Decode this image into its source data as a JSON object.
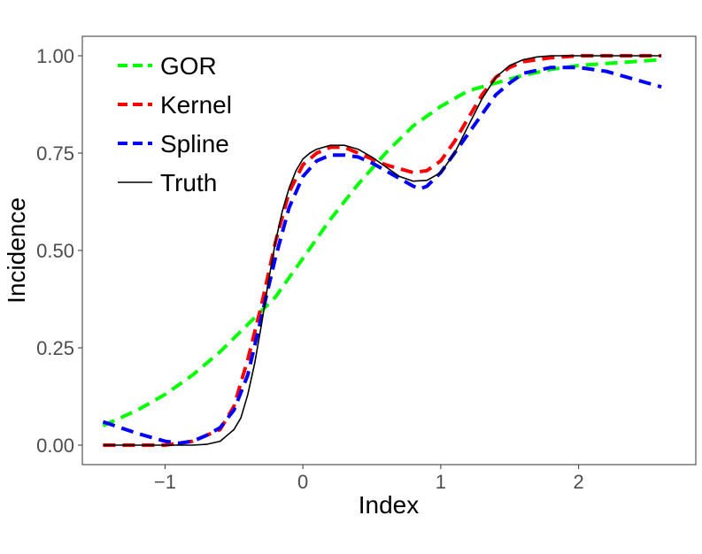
{
  "chart_data": {
    "type": "line",
    "xlabel": "Index",
    "ylabel": "Incidence",
    "xlim": [
      -1.6,
      2.85
    ],
    "ylim": [
      -0.05,
      1.05
    ],
    "xticks": [
      -1,
      0,
      1,
      2
    ],
    "xtick_labels": [
      "−1",
      "0",
      "1",
      "2"
    ],
    "yticks": [
      0,
      0.25,
      0.5,
      0.75,
      1.0
    ],
    "ytick_labels": [
      "0.00",
      "0.25",
      "0.50",
      "0.75",
      "1.00"
    ],
    "grid": false,
    "legend_position": "top-left",
    "series": [
      {
        "name": "GOR",
        "color": "#00ff00",
        "dash": "dashed",
        "x": [
          -1.45,
          -1.2,
          -1.0,
          -0.8,
          -0.6,
          -0.4,
          -0.2,
          0.0,
          0.2,
          0.4,
          0.6,
          0.8,
          1.0,
          1.2,
          1.4,
          1.6,
          1.8,
          2.0,
          2.2,
          2.4,
          2.6
        ],
        "y": [
          0.05,
          0.09,
          0.13,
          0.18,
          0.24,
          0.31,
          0.38,
          0.48,
          0.58,
          0.67,
          0.75,
          0.82,
          0.87,
          0.91,
          0.93,
          0.95,
          0.965,
          0.975,
          0.98,
          0.985,
          0.99
        ]
      },
      {
        "name": "Kernel",
        "color": "#ff0000",
        "dash": "dashed",
        "x": [
          -1.45,
          -1.2,
          -1.0,
          -0.8,
          -0.6,
          -0.5,
          -0.4,
          -0.3,
          -0.2,
          -0.1,
          0.0,
          0.1,
          0.2,
          0.3,
          0.4,
          0.6,
          0.8,
          0.9,
          1.0,
          1.1,
          1.2,
          1.3,
          1.4,
          1.5,
          1.6,
          1.8,
          2.0,
          2.2,
          2.4,
          2.6
        ],
        "y": [
          0.0,
          0.0,
          0.0,
          0.01,
          0.04,
          0.1,
          0.22,
          0.36,
          0.52,
          0.65,
          0.72,
          0.75,
          0.765,
          0.765,
          0.75,
          0.72,
          0.7,
          0.705,
          0.73,
          0.78,
          0.84,
          0.9,
          0.945,
          0.97,
          0.985,
          0.995,
          1.0,
          1.0,
          1.0,
          1.0
        ]
      },
      {
        "name": "Spline",
        "color": "#0000ff",
        "dash": "dashed",
        "x": [
          -1.45,
          -1.2,
          -1.0,
          -0.9,
          -0.8,
          -0.7,
          -0.6,
          -0.5,
          -0.4,
          -0.3,
          -0.2,
          -0.1,
          0.0,
          0.1,
          0.2,
          0.3,
          0.4,
          0.5,
          0.6,
          0.7,
          0.8,
          0.85,
          0.9,
          1.0,
          1.1,
          1.2,
          1.3,
          1.4,
          1.5,
          1.6,
          1.8,
          2.0,
          2.2,
          2.4,
          2.6
        ],
        "y": [
          0.06,
          0.03,
          0.01,
          0.005,
          0.01,
          0.025,
          0.045,
          0.09,
          0.18,
          0.33,
          0.48,
          0.61,
          0.69,
          0.73,
          0.745,
          0.745,
          0.74,
          0.725,
          0.705,
          0.685,
          0.665,
          0.658,
          0.665,
          0.7,
          0.75,
          0.8,
          0.85,
          0.9,
          0.93,
          0.955,
          0.97,
          0.97,
          0.96,
          0.94,
          0.92
        ]
      },
      {
        "name": "Truth",
        "color": "#000000",
        "dash": "solid",
        "x": [
          -1.45,
          -1.0,
          -0.8,
          -0.7,
          -0.6,
          -0.5,
          -0.45,
          -0.4,
          -0.35,
          -0.3,
          -0.25,
          -0.2,
          -0.15,
          -0.1,
          -0.05,
          0.0,
          0.05,
          0.1,
          0.2,
          0.3,
          0.4,
          0.5,
          0.6,
          0.7,
          0.8,
          0.9,
          1.0,
          1.1,
          1.2,
          1.3,
          1.4,
          1.5,
          1.6,
          1.7,
          1.8,
          2.0,
          2.2,
          2.4,
          2.6
        ],
        "y": [
          0.0,
          0.0,
          0.0,
          0.002,
          0.01,
          0.04,
          0.07,
          0.13,
          0.21,
          0.31,
          0.42,
          0.52,
          0.6,
          0.66,
          0.705,
          0.735,
          0.75,
          0.76,
          0.77,
          0.77,
          0.76,
          0.74,
          0.715,
          0.69,
          0.678,
          0.68,
          0.7,
          0.75,
          0.82,
          0.89,
          0.945,
          0.975,
          0.99,
          0.997,
          1.0,
          1.0,
          1.0,
          1.0,
          1.0
        ]
      }
    ]
  }
}
